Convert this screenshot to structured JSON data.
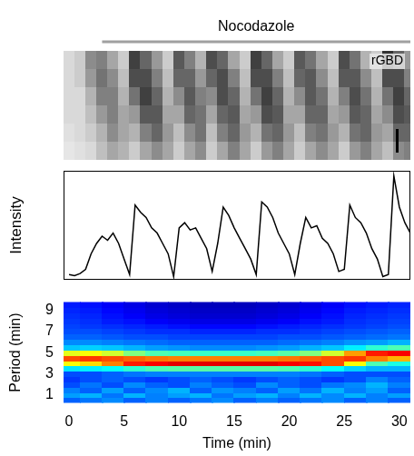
{
  "chart_data": [
    {
      "type": "kymograph",
      "title": "rGBD",
      "annotations": [
        {
          "text": "Nocodazole",
          "x_start": 3,
          "x_end": 31
        }
      ],
      "x": [
        0,
        1,
        2,
        3,
        4,
        5,
        6,
        7,
        8,
        9,
        10,
        11,
        12,
        13,
        14,
        15,
        16,
        17,
        18,
        19,
        20,
        21,
        22,
        23,
        24,
        25,
        26,
        27,
        28,
        29,
        30,
        31
      ],
      "cells": [
        [
          0.15,
          0.2,
          0.45,
          0.5,
          0.35,
          0.2,
          0.75,
          0.6,
          0.4,
          0.2,
          0.65,
          0.5,
          0.3,
          0.7,
          0.6,
          0.35,
          0.2,
          0.75,
          0.6,
          0.35,
          0.2,
          0.65,
          0.55,
          0.35,
          0.2,
          0.7,
          0.55,
          0.3,
          0.2,
          0.8,
          0.6,
          0.4
        ],
        [
          0.15,
          0.2,
          0.4,
          0.55,
          0.45,
          0.25,
          0.7,
          0.7,
          0.5,
          0.25,
          0.6,
          0.6,
          0.4,
          0.6,
          0.7,
          0.5,
          0.25,
          0.7,
          0.7,
          0.5,
          0.25,
          0.6,
          0.65,
          0.45,
          0.25,
          0.65,
          0.65,
          0.45,
          0.25,
          0.7,
          0.7,
          0.5
        ],
        [
          0.15,
          0.15,
          0.3,
          0.5,
          0.5,
          0.3,
          0.55,
          0.75,
          0.6,
          0.3,
          0.45,
          0.65,
          0.5,
          0.45,
          0.7,
          0.6,
          0.3,
          0.55,
          0.75,
          0.6,
          0.3,
          0.45,
          0.65,
          0.55,
          0.3,
          0.5,
          0.7,
          0.55,
          0.3,
          0.55,
          0.75,
          0.6
        ],
        [
          0.15,
          0.15,
          0.25,
          0.4,
          0.5,
          0.35,
          0.4,
          0.65,
          0.65,
          0.35,
          0.35,
          0.6,
          0.55,
          0.35,
          0.6,
          0.65,
          0.35,
          0.4,
          0.7,
          0.65,
          0.35,
          0.35,
          0.6,
          0.6,
          0.35,
          0.4,
          0.65,
          0.6,
          0.35,
          0.45,
          0.7,
          0.65
        ],
        [
          0.12,
          0.15,
          0.2,
          0.3,
          0.45,
          0.35,
          0.3,
          0.5,
          0.6,
          0.4,
          0.25,
          0.45,
          0.55,
          0.25,
          0.5,
          0.6,
          0.4,
          0.3,
          0.55,
          0.6,
          0.4,
          0.25,
          0.5,
          0.55,
          0.4,
          0.3,
          0.55,
          0.6,
          0.4,
          0.35,
          0.6,
          0.6
        ],
        [
          0.1,
          0.12,
          0.15,
          0.25,
          0.35,
          0.3,
          0.2,
          0.35,
          0.45,
          0.35,
          0.2,
          0.35,
          0.45,
          0.2,
          0.35,
          0.5,
          0.35,
          0.2,
          0.4,
          0.5,
          0.35,
          0.2,
          0.35,
          0.45,
          0.35,
          0.2,
          0.4,
          0.5,
          0.35,
          0.25,
          0.45,
          0.5
        ]
      ],
      "color_range": [
        0,
        1
      ],
      "xlim": [
        -0.5,
        31
      ],
      "tick_labels": false
    },
    {
      "type": "line",
      "ylabel": "Intensity",
      "color": "#000000",
      "x": [
        0,
        0.5,
        1,
        1.5,
        2,
        2.5,
        3,
        3.5,
        4,
        4.5,
        5,
        5.5,
        6,
        6.5,
        7,
        7.5,
        8,
        8.5,
        9,
        9.5,
        10,
        10.5,
        11,
        11.5,
        12,
        12.5,
        13,
        13.5,
        14,
        14.5,
        15,
        15.5,
        16,
        16.5,
        17,
        17.5,
        18,
        18.5,
        19,
        19.5,
        20,
        20.5,
        21,
        21.5,
        22,
        22.5,
        23,
        23.5,
        24,
        24.5,
        25,
        25.5,
        26,
        26.5,
        27,
        27.5,
        28,
        28.5,
        29,
        29.5,
        30,
        30.5,
        31
      ],
      "values": [
        0.05,
        0.04,
        0.06,
        0.1,
        0.25,
        0.35,
        0.42,
        0.38,
        0.45,
        0.35,
        0.2,
        0.05,
        0.72,
        0.65,
        0.6,
        0.5,
        0.45,
        0.35,
        0.25,
        0.03,
        0.5,
        0.55,
        0.48,
        0.5,
        0.4,
        0.3,
        0.08,
        0.35,
        0.7,
        0.62,
        0.5,
        0.4,
        0.3,
        0.2,
        0.05,
        0.75,
        0.7,
        0.6,
        0.45,
        0.35,
        0.25,
        0.05,
        0.35,
        0.6,
        0.5,
        0.52,
        0.4,
        0.35,
        0.25,
        0.08,
        0.1,
        0.72,
        0.6,
        0.55,
        0.45,
        0.3,
        0.2,
        0.03,
        0.05,
        1.0,
        0.7,
        0.55,
        0.45
      ],
      "xlim": [
        -0.5,
        31
      ],
      "ylim": [
        0,
        1.05
      ],
      "tick_labels": false
    },
    {
      "type": "heatmap",
      "xlabel": "Time (min)",
      "ylabel": "Period (min)",
      "x": [
        0,
        2,
        4,
        6,
        8,
        10,
        12,
        14,
        16,
        18,
        20,
        22,
        24,
        26,
        28,
        30
      ],
      "y": [
        0.5,
        1,
        1.5,
        2,
        2.5,
        3,
        3.5,
        4,
        4.5,
        5,
        5.5,
        6,
        6.5,
        7,
        7.5,
        8,
        8.5,
        9,
        9.5
      ],
      "cells": [
        [
          0.22,
          0.24,
          0.26,
          0.22,
          0.25,
          0.22,
          0.24,
          0.26,
          0.22,
          0.25,
          0.22,
          0.24,
          0.26,
          0.22,
          0.25,
          0.22
        ],
        [
          0.28,
          0.3,
          0.24,
          0.3,
          0.25,
          0.28,
          0.3,
          0.24,
          0.28,
          0.3,
          0.25,
          0.3,
          0.26,
          0.3,
          0.25,
          0.28
        ],
        [
          0.25,
          0.22,
          0.28,
          0.22,
          0.26,
          0.3,
          0.22,
          0.27,
          0.25,
          0.22,
          0.28,
          0.24,
          0.3,
          0.25,
          0.28,
          0.22
        ],
        [
          0.2,
          0.24,
          0.2,
          0.26,
          0.22,
          0.2,
          0.25,
          0.22,
          0.2,
          0.26,
          0.22,
          0.2,
          0.24,
          0.26,
          0.3,
          0.25
        ],
        [
          0.18,
          0.2,
          0.22,
          0.2,
          0.18,
          0.2,
          0.22,
          0.2,
          0.18,
          0.2,
          0.22,
          0.2,
          0.18,
          0.2,
          0.25,
          0.22
        ],
        [
          0.2,
          0.2,
          0.22,
          0.24,
          0.25,
          0.25,
          0.25,
          0.25,
          0.25,
          0.25,
          0.25,
          0.24,
          0.22,
          0.2,
          0.2,
          0.2
        ],
        [
          0.35,
          0.36,
          0.38,
          0.42,
          0.45,
          0.46,
          0.46,
          0.46,
          0.46,
          0.46,
          0.45,
          0.42,
          0.38,
          0.33,
          0.3,
          0.3
        ],
        [
          0.62,
          0.66,
          0.75,
          0.85,
          0.88,
          0.9,
          0.9,
          0.9,
          0.9,
          0.9,
          0.88,
          0.86,
          0.8,
          0.62,
          0.45,
          0.4
        ],
        [
          0.8,
          0.82,
          0.8,
          0.78,
          0.76,
          0.75,
          0.75,
          0.75,
          0.75,
          0.75,
          0.76,
          0.78,
          0.8,
          0.82,
          0.75,
          0.7
        ],
        [
          0.6,
          0.62,
          0.58,
          0.5,
          0.45,
          0.44,
          0.43,
          0.43,
          0.43,
          0.44,
          0.46,
          0.5,
          0.58,
          0.72,
          0.85,
          0.88
        ],
        [
          0.32,
          0.33,
          0.32,
          0.3,
          0.28,
          0.27,
          0.26,
          0.26,
          0.26,
          0.27,
          0.28,
          0.3,
          0.32,
          0.36,
          0.42,
          0.45
        ],
        [
          0.26,
          0.26,
          0.25,
          0.24,
          0.23,
          0.22,
          0.22,
          0.22,
          0.22,
          0.22,
          0.23,
          0.24,
          0.25,
          0.27,
          0.28,
          0.3
        ],
        [
          0.22,
          0.22,
          0.21,
          0.2,
          0.2,
          0.19,
          0.19,
          0.19,
          0.19,
          0.19,
          0.2,
          0.2,
          0.21,
          0.22,
          0.23,
          0.24
        ],
        [
          0.2,
          0.2,
          0.19,
          0.18,
          0.17,
          0.17,
          0.16,
          0.16,
          0.16,
          0.17,
          0.17,
          0.18,
          0.19,
          0.2,
          0.21,
          0.22
        ],
        [
          0.19,
          0.18,
          0.17,
          0.16,
          0.15,
          0.14,
          0.13,
          0.13,
          0.13,
          0.14,
          0.15,
          0.16,
          0.17,
          0.18,
          0.19,
          0.2
        ],
        [
          0.18,
          0.17,
          0.15,
          0.14,
          0.12,
          0.11,
          0.1,
          0.1,
          0.1,
          0.11,
          0.12,
          0.14,
          0.15,
          0.17,
          0.18,
          0.19
        ],
        [
          0.17,
          0.16,
          0.14,
          0.12,
          0.1,
          0.09,
          0.08,
          0.08,
          0.08,
          0.09,
          0.1,
          0.12,
          0.14,
          0.16,
          0.17,
          0.18
        ],
        [
          0.16,
          0.15,
          0.13,
          0.11,
          0.09,
          0.08,
          0.07,
          0.07,
          0.07,
          0.08,
          0.09,
          0.11,
          0.13,
          0.15,
          0.16,
          0.17
        ],
        [
          0.15,
          0.14,
          0.12,
          0.1,
          0.08,
          0.07,
          0.06,
          0.06,
          0.06,
          0.07,
          0.08,
          0.1,
          0.12,
          0.14,
          0.15,
          0.16
        ]
      ],
      "color_range": [
        0,
        1
      ],
      "xlim": [
        -0.5,
        31
      ],
      "ylim": [
        0.25,
        9.75
      ],
      "xticks": [
        0,
        5,
        10,
        15,
        20,
        25,
        30
      ],
      "yticks": [
        1,
        3,
        5,
        7,
        9
      ]
    }
  ]
}
